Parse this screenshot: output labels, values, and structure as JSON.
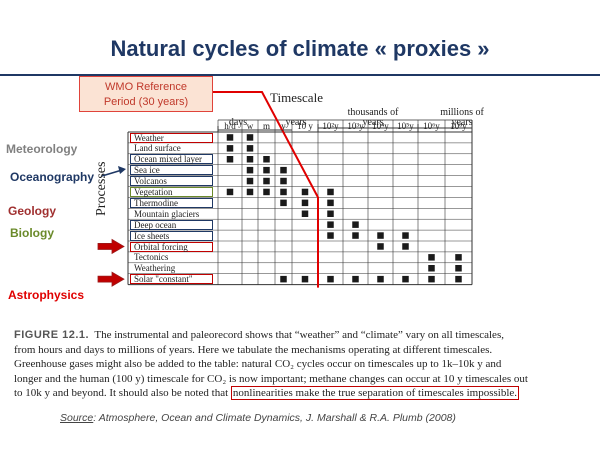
{
  "title": "Natural cycles of climate « proxies »",
  "wmo_callout": {
    "line1": "WMO Reference",
    "line2": "Period (30 years)"
  },
  "figure": {
    "timescale_label": "Timescale",
    "processes_label": "Processes",
    "groups": [
      "days",
      "years",
      "thousands of",
      "years",
      "millions of",
      "years"
    ],
    "columns": [
      "h/d",
      "w",
      "m",
      "y",
      "10 y",
      "10²y",
      "10³y",
      "10⁴y",
      "10⁵y",
      "10⁶y",
      "10⁸y"
    ],
    "rows": [
      {
        "label": "Weather",
        "marks": [
          1,
          1,
          0,
          0,
          0,
          0,
          0,
          0,
          0,
          0,
          0
        ]
      },
      {
        "label": "Land surface",
        "marks": [
          1,
          1,
          0,
          0,
          0,
          0,
          0,
          0,
          0,
          0,
          0
        ]
      },
      {
        "label": "Ocean mixed layer",
        "marks": [
          1,
          1,
          1,
          0,
          0,
          0,
          0,
          0,
          0,
          0,
          0
        ]
      },
      {
        "label": "Sea ice",
        "marks": [
          0,
          1,
          1,
          1,
          0,
          0,
          0,
          0,
          0,
          0,
          0
        ]
      },
      {
        "label": "Volcanos",
        "marks": [
          0,
          1,
          1,
          1,
          0,
          0,
          0,
          0,
          0,
          0,
          0
        ]
      },
      {
        "label": "Vegetation",
        "marks": [
          1,
          1,
          1,
          1,
          1,
          1,
          0,
          0,
          0,
          0,
          0
        ]
      },
      {
        "label": "Thermodine",
        "marks": [
          0,
          0,
          0,
          1,
          1,
          1,
          0,
          0,
          0,
          0,
          0
        ]
      },
      {
        "label": "Mountain glaciers",
        "marks": [
          0,
          0,
          0,
          0,
          1,
          1,
          0,
          0,
          0,
          0,
          0
        ]
      },
      {
        "label": "Deep ocean",
        "marks": [
          0,
          0,
          0,
          0,
          0,
          1,
          1,
          0,
          0,
          0,
          0
        ]
      },
      {
        "label": "Ice sheets",
        "marks": [
          0,
          0,
          0,
          0,
          0,
          1,
          1,
          1,
          1,
          0,
          0
        ]
      },
      {
        "label": "Orbital forcing",
        "marks": [
          0,
          0,
          0,
          0,
          0,
          0,
          0,
          1,
          1,
          0,
          0
        ]
      },
      {
        "label": "Tectonics",
        "marks": [
          0,
          0,
          0,
          0,
          0,
          0,
          0,
          0,
          0,
          1,
          1
        ]
      },
      {
        "label": "Weathering",
        "marks": [
          0,
          0,
          0,
          0,
          0,
          0,
          0,
          0,
          0,
          1,
          1
        ]
      },
      {
        "label": "Solar \"constant\"",
        "marks": [
          0,
          0,
          0,
          1,
          1,
          1,
          1,
          1,
          1,
          1,
          1
        ]
      }
    ]
  },
  "categories": {
    "meteorology": "Meteorology",
    "oceanography": "Oceanography",
    "geology": "Geology",
    "biology": "Biology",
    "astrophysics": "Astrophysics"
  },
  "caption": {
    "fig_label": "FIGURE 12.1.",
    "line1": "The instrumental and paleorecord shows that “weather” and “climate” vary on all timescales,",
    "line2": "from hours and days to millions of years. Here we tabulate the mechanisms operating at different timescales.",
    "line3": "Greenhouse gases might also be added to the table: natural CO₂ cycles occur on timescales up to 1k–10k y and",
    "line4": "longer and the human (100 y) timescale for CO₂ is now important; methane changes can occur at 10 y timescales out",
    "line5a": "to 10k y and beyond. It should also be noted that",
    "line5b": "nonlinearities make the true separation of timescales impossible."
  },
  "source": {
    "label": "Source",
    "text": ": Atmosphere, Ocean and Climate Dynamics, J. Marshall & R.A. Plumb (2008)"
  },
  "colors": {
    "title": "#1f3864",
    "meteorology": "#808080",
    "oceanography": "#1f3864",
    "geology": "#a03030",
    "biology": "#6a8a2a",
    "astrophysics": "#e00000",
    "highlight_red": "#c00000",
    "highlight_blue": "#1f3864",
    "highlight_green": "#6a8a2a"
  }
}
